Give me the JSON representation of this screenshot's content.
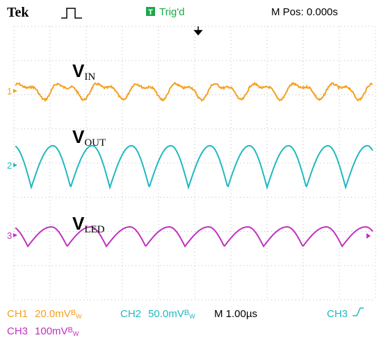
{
  "header": {
    "brand": "Tek",
    "trigger_icon": "T",
    "status": "Trig'd",
    "position": "M Pos: 0.000s"
  },
  "labels": [
    {
      "main": "V",
      "sub": "IN"
    },
    {
      "main": "V",
      "sub": "OUT"
    },
    {
      "main": "V",
      "sub": "LED"
    }
  ],
  "channel_markers": [
    "1",
    "2",
    "3"
  ],
  "footer": {
    "ch1": {
      "name": "CH1",
      "scale": "20.0mV",
      "bw_main": "B",
      "bw_sub": "W"
    },
    "ch2": {
      "name": "CH2",
      "scale": "50.0mV",
      "bw_main": "B",
      "bw_sub": "W"
    },
    "timebase": "M 1.00µs",
    "trigger_source": "CH3",
    "ch3": {
      "name": "CH3",
      "scale": "100mV",
      "bw_main": "B",
      "bw_sub": "W"
    }
  }
}
